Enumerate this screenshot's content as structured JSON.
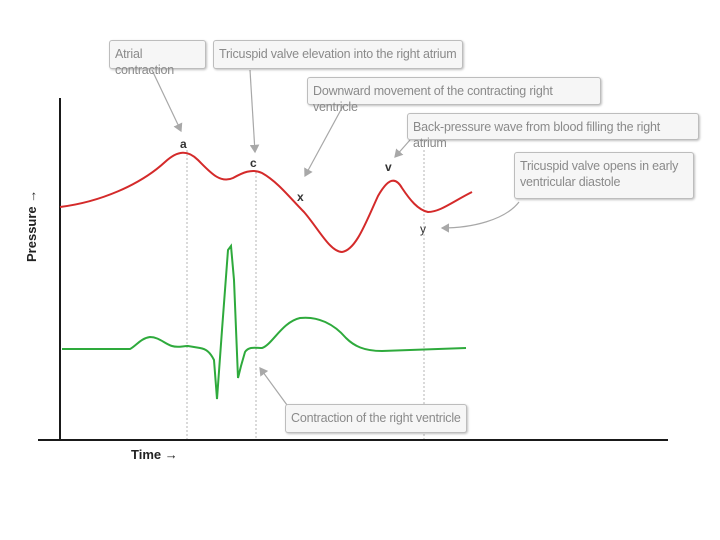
{
  "axes": {
    "x_label": "Time →",
    "y_label": "Pressure →"
  },
  "wave_labels": {
    "a": "a",
    "c": "c",
    "x": "x",
    "v_peak": "v",
    "y": "y"
  },
  "callouts": {
    "atrial_contraction": "Atrial contraction",
    "tricuspid_elevation": "Tricuspid valve elevation into the right atrium",
    "downward_movement": "Downward movement of the contracting right ventricle",
    "back_pressure": "Back-pressure wave from blood filling the right atrium",
    "tricuspid_opens_line1": "Tricuspid valve opens in early",
    "tricuspid_opens_line2": "ventricular diastole",
    "contraction_rv": "Contraction of the right ventricle"
  },
  "colors": {
    "pressure_trace": "#d42a2a",
    "ecg_trace": "#2eaa3c",
    "axis": "#1a1a1a",
    "guide_line": "#b5b5b5",
    "pointer": "#a8a8a8"
  }
}
